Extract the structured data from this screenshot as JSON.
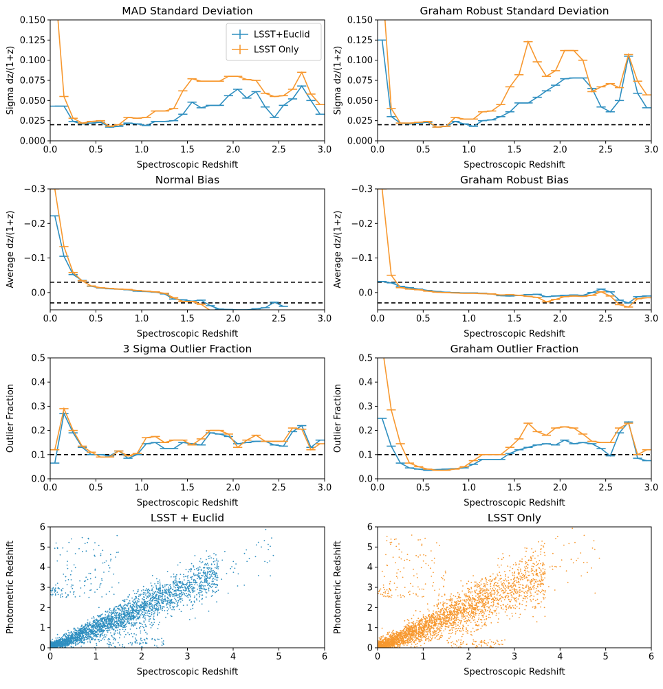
{
  "colors": {
    "euclid": "#2f8fc0",
    "lsst": "#f7982f",
    "reference": "#000000"
  },
  "chart_data": [
    {
      "id": "mad-std",
      "type": "line",
      "title": "MAD Standard Deviation",
      "xlabel": "Spectroscopic Redshift",
      "ylabel": "Sigma dz/(1+z)",
      "xlim": [
        0,
        3
      ],
      "ylim": [
        0,
        0.15
      ],
      "xticks": [
        "0.0",
        "0.5",
        "1.0",
        "1.5",
        "2.0",
        "2.5",
        "3.0"
      ],
      "yticks": [
        "0.000",
        "0.025",
        "0.050",
        "0.075",
        "0.100",
        "0.125",
        "0.150"
      ],
      "reference_lines": [
        0.02
      ],
      "legend": {
        "position": "top-right",
        "entries": [
          "LSST+Euclid",
          "LSST Only"
        ]
      },
      "x": [
        0.05,
        0.15,
        0.25,
        0.35,
        0.45,
        0.55,
        0.65,
        0.75,
        0.85,
        0.95,
        1.05,
        1.15,
        1.25,
        1.35,
        1.45,
        1.55,
        1.65,
        1.75,
        1.85,
        1.95,
        2.05,
        2.15,
        2.25,
        2.35,
        2.45,
        2.55,
        2.65,
        2.75,
        2.85,
        2.95
      ],
      "series": [
        {
          "name": "LSST+Euclid",
          "values": [
            0.043,
            0.043,
            0.024,
            0.021,
            0.022,
            0.023,
            0.017,
            0.018,
            0.022,
            0.021,
            0.019,
            0.024,
            0.024,
            0.025,
            0.033,
            0.048,
            0.041,
            0.044,
            0.044,
            0.056,
            0.064,
            0.053,
            0.061,
            0.042,
            0.029,
            0.044,
            0.052,
            0.068,
            0.05,
            0.033
          ]
        },
        {
          "name": "LSST Only",
          "values": [
            0.2,
            0.055,
            0.028,
            0.022,
            0.024,
            0.025,
            0.018,
            0.02,
            0.029,
            0.028,
            0.029,
            0.037,
            0.037,
            0.04,
            0.062,
            0.077,
            0.074,
            0.074,
            0.074,
            0.08,
            0.08,
            0.076,
            0.075,
            0.059,
            0.055,
            0.056,
            0.064,
            0.085,
            0.058,
            0.045
          ]
        }
      ]
    },
    {
      "id": "graham-std",
      "type": "line",
      "title": "Graham Robust Standard Deviation",
      "xlabel": "Spectroscopic Redshift",
      "ylabel": "Sigma dz/(1+z)",
      "xlim": [
        0,
        3
      ],
      "ylim": [
        0,
        0.15
      ],
      "xticks": [
        "0.0",
        "0.5",
        "1.0",
        "1.5",
        "2.0",
        "2.5",
        "3.0"
      ],
      "yticks": [
        "0.000",
        "0.025",
        "0.050",
        "0.075",
        "0.100",
        "0.125",
        "0.150"
      ],
      "reference_lines": [
        0.02
      ],
      "x": [
        0.05,
        0.15,
        0.25,
        0.35,
        0.45,
        0.55,
        0.65,
        0.75,
        0.85,
        0.95,
        1.05,
        1.15,
        1.25,
        1.35,
        1.45,
        1.55,
        1.65,
        1.75,
        1.85,
        1.95,
        2.05,
        2.15,
        2.25,
        2.35,
        2.45,
        2.55,
        2.65,
        2.75,
        2.85,
        2.95
      ],
      "series": [
        {
          "name": "LSST+Euclid",
          "values": [
            0.125,
            0.03,
            0.022,
            0.021,
            0.022,
            0.023,
            0.017,
            0.018,
            0.024,
            0.021,
            0.018,
            0.025,
            0.026,
            0.03,
            0.036,
            0.047,
            0.047,
            0.054,
            0.062,
            0.069,
            0.077,
            0.078,
            0.078,
            0.065,
            0.042,
            0.036,
            0.05,
            0.105,
            0.059,
            0.041
          ]
        },
        {
          "name": "LSST Only",
          "values": [
            0.2,
            0.04,
            0.022,
            0.022,
            0.023,
            0.024,
            0.017,
            0.018,
            0.029,
            0.027,
            0.027,
            0.036,
            0.037,
            0.045,
            0.067,
            0.082,
            0.123,
            0.098,
            0.08,
            0.087,
            0.112,
            0.112,
            0.1,
            0.061,
            0.067,
            0.071,
            0.066,
            0.107,
            0.074,
            0.057
          ]
        }
      ]
    },
    {
      "id": "normal-bias",
      "type": "line",
      "title": "Normal Bias",
      "xlabel": "Spectroscopic Redshift",
      "ylabel": "Average dz/(1+z)",
      "xlim": [
        0,
        3
      ],
      "ylim": [
        0.05,
        -0.3
      ],
      "xticks": [
        "0.0",
        "0.5",
        "1.0",
        "1.5",
        "2.0",
        "2.5",
        "3.0"
      ],
      "yticks": [
        "−0.3",
        "−0.2",
        "−0.1",
        "0.0"
      ],
      "reference_lines": [
        -0.03,
        0.03
      ],
      "x": [
        0.05,
        0.15,
        0.25,
        0.35,
        0.45,
        0.55,
        0.65,
        0.75,
        0.85,
        0.95,
        1.05,
        1.15,
        1.25,
        1.35,
        1.45,
        1.55,
        1.65,
        1.75,
        1.85,
        1.95,
        2.05,
        2.15,
        2.25,
        2.35,
        2.45,
        2.55
      ],
      "series": [
        {
          "name": "LSST+Euclid",
          "values": [
            -0.222,
            -0.105,
            -0.052,
            -0.035,
            -0.018,
            -0.013,
            -0.011,
            -0.01,
            -0.008,
            -0.004,
            -0.003,
            -0.001,
            0.004,
            0.019,
            0.021,
            0.025,
            0.022,
            0.038,
            0.048,
            0.049,
            0.05,
            0.05,
            0.047,
            0.044,
            0.028,
            0.04
          ]
        },
        {
          "name": "LSST Only",
          "values": [
            -0.3,
            -0.133,
            -0.058,
            -0.034,
            -0.019,
            -0.014,
            -0.012,
            -0.01,
            -0.009,
            -0.006,
            -0.004,
            -0.002,
            0.002,
            0.015,
            0.026,
            0.026,
            0.034,
            0.052,
            0.055,
            0.06,
            0.06,
            0.058,
            0.057,
            0.055,
            0.053,
            0.06
          ]
        }
      ]
    },
    {
      "id": "graham-bias",
      "type": "line",
      "title": "Graham Robust Bias",
      "xlabel": "Spectroscopic Redshift",
      "ylabel": "Average dz/(1+z)",
      "xlim": [
        0,
        3
      ],
      "ylim": [
        0.05,
        -0.3
      ],
      "xticks": [
        "0.0",
        "0.5",
        "1.0",
        "1.5",
        "2.0",
        "2.5",
        "3.0"
      ],
      "yticks": [
        "−0.3",
        "−0.2",
        "−0.1",
        "0.0"
      ],
      "reference_lines": [
        -0.03,
        0.03
      ],
      "x": [
        0.05,
        0.15,
        0.25,
        0.35,
        0.45,
        0.55,
        0.65,
        0.75,
        0.85,
        0.95,
        1.05,
        1.15,
        1.25,
        1.35,
        1.45,
        1.55,
        1.65,
        1.75,
        1.85,
        1.95,
        2.05,
        2.15,
        2.25,
        2.35,
        2.45,
        2.55,
        2.65,
        2.75,
        2.85,
        2.95
      ],
      "series": [
        {
          "name": "LSST+Euclid",
          "values": [
            -0.032,
            -0.028,
            -0.018,
            -0.014,
            -0.01,
            -0.006,
            -0.003,
            -0.001,
            0.0,
            0.001,
            0.001,
            0.002,
            0.004,
            0.009,
            0.01,
            0.008,
            0.006,
            0.005,
            0.012,
            0.01,
            0.008,
            0.007,
            0.008,
            0.0,
            -0.01,
            -0.002,
            0.022,
            0.03,
            0.012,
            0.01
          ]
        },
        {
          "name": "LSST Only",
          "values": [
            -0.3,
            -0.05,
            -0.014,
            -0.01,
            -0.008,
            -0.004,
            -0.001,
            0.0,
            0.001,
            0.002,
            0.002,
            0.003,
            0.004,
            0.007,
            0.006,
            0.008,
            0.011,
            0.014,
            0.027,
            0.02,
            0.012,
            0.01,
            0.011,
            0.008,
            -0.002,
            0.01,
            0.035,
            0.042,
            0.018,
            0.015
          ]
        }
      ]
    },
    {
      "id": "sigma-outlier",
      "type": "line",
      "title": "3 Sigma Outlier Fraction",
      "xlabel": "Spectroscopic Redshift",
      "ylabel": "Outlier Fraction",
      "xlim": [
        0,
        3
      ],
      "ylim": [
        0,
        0.5
      ],
      "xticks": [
        "0.0",
        "0.5",
        "1.0",
        "1.5",
        "2.0",
        "2.5",
        "3.0"
      ],
      "yticks": [
        "0.0",
        "0.1",
        "0.2",
        "0.3",
        "0.4",
        "0.5"
      ],
      "reference_lines": [
        0.1
      ],
      "x": [
        0.05,
        0.15,
        0.25,
        0.35,
        0.45,
        0.55,
        0.65,
        0.75,
        0.85,
        0.95,
        1.05,
        1.15,
        1.25,
        1.35,
        1.45,
        1.55,
        1.65,
        1.75,
        1.85,
        1.95,
        2.05,
        2.15,
        2.25,
        2.35,
        2.45,
        2.55,
        2.65,
        2.75,
        2.85,
        2.95
      ],
      "series": [
        {
          "name": "LSST+Euclid",
          "values": [
            0.065,
            0.27,
            0.19,
            0.13,
            0.1,
            0.1,
            0.095,
            0.115,
            0.085,
            0.1,
            0.145,
            0.15,
            0.125,
            0.125,
            0.15,
            0.145,
            0.14,
            0.19,
            0.185,
            0.175,
            0.145,
            0.15,
            0.155,
            0.155,
            0.14,
            0.135,
            0.195,
            0.22,
            0.13,
            0.16
          ]
        },
        {
          "name": "LSST Only",
          "values": [
            0.12,
            0.29,
            0.2,
            0.135,
            0.11,
            0.09,
            0.09,
            0.115,
            0.095,
            0.105,
            0.17,
            0.175,
            0.15,
            0.16,
            0.16,
            0.14,
            0.165,
            0.2,
            0.2,
            0.185,
            0.13,
            0.16,
            0.18,
            0.155,
            0.155,
            0.155,
            0.21,
            0.205,
            0.12,
            0.145
          ]
        }
      ]
    },
    {
      "id": "graham-outlier",
      "type": "line",
      "title": "Graham Outlier Fraction",
      "xlabel": "Spectroscopic Redshift",
      "ylabel": "Outlier Fraction",
      "xlim": [
        0,
        3
      ],
      "ylim": [
        0,
        0.5
      ],
      "xticks": [
        "0.0",
        "0.5",
        "1.0",
        "1.5",
        "2.0",
        "2.5",
        "3.0"
      ],
      "yticks": [
        "0.0",
        "0.1",
        "0.2",
        "0.3",
        "0.4",
        "0.5"
      ],
      "reference_lines": [
        0.1
      ],
      "x": [
        0.05,
        0.15,
        0.25,
        0.35,
        0.45,
        0.55,
        0.65,
        0.75,
        0.85,
        0.95,
        1.05,
        1.15,
        1.25,
        1.35,
        1.45,
        1.55,
        1.65,
        1.75,
        1.85,
        1.95,
        2.05,
        2.15,
        2.25,
        2.35,
        2.45,
        2.55,
        2.65,
        2.75,
        2.85,
        2.95
      ],
      "series": [
        {
          "name": "LSST+Euclid",
          "values": [
            0.25,
            0.135,
            0.065,
            0.045,
            0.04,
            0.035,
            0.038,
            0.04,
            0.042,
            0.045,
            0.06,
            0.08,
            0.08,
            0.08,
            0.105,
            0.12,
            0.13,
            0.14,
            0.145,
            0.14,
            0.16,
            0.145,
            0.15,
            0.145,
            0.125,
            0.095,
            0.19,
            0.235,
            0.085,
            0.075
          ]
        },
        {
          "name": "LSST Only",
          "values": [
            0.55,
            0.285,
            0.145,
            0.065,
            0.05,
            0.04,
            0.035,
            0.035,
            0.04,
            0.05,
            0.075,
            0.1,
            0.1,
            0.1,
            0.13,
            0.165,
            0.23,
            0.195,
            0.18,
            0.21,
            0.215,
            0.21,
            0.185,
            0.155,
            0.15,
            0.15,
            0.21,
            0.23,
            0.1,
            0.12
          ]
        }
      ]
    },
    {
      "id": "scatter-euclid",
      "type": "scatter",
      "title": "LSST + Euclid",
      "xlabel": "Spectroscopic Redshift",
      "ylabel": "Photometric Redshift",
      "xlim": [
        0,
        6
      ],
      "ylim": [
        0,
        6
      ],
      "xticks": [
        "0",
        "1",
        "2",
        "3",
        "4",
        "5",
        "6"
      ],
      "yticks": [
        "0",
        "1",
        "2",
        "3",
        "4",
        "5",
        "6"
      ],
      "series_name": "LSST+Euclid",
      "main_relation": {
        "x_range": [
          0.0,
          4.9
        ],
        "slope": 1.0,
        "scatter_sigma": 0.12
      },
      "outlier_clusters": [
        {
          "x_range": [
            0.1,
            1.5
          ],
          "y_range": [
            2.5,
            5.6
          ]
        },
        {
          "x_range": [
            1.0,
            2.5
          ],
          "y_range": [
            0.0,
            0.5
          ]
        },
        {
          "x_range": [
            0.0,
            0.3
          ],
          "y_range": [
            2.5,
            3.0
          ]
        }
      ]
    },
    {
      "id": "scatter-lsst",
      "type": "scatter",
      "title": "LSST Only",
      "xlabel": "Spectroscopic Redshift",
      "ylabel": "Photometric Redshift",
      "xlim": [
        0,
        6
      ],
      "ylim": [
        0,
        6
      ],
      "xticks": [
        "0",
        "1",
        "2",
        "3",
        "4",
        "5",
        "6"
      ],
      "yticks": [
        "0",
        "1",
        "2",
        "3",
        "4",
        "5",
        "6"
      ],
      "series_name": "LSST Only",
      "main_relation": {
        "x_range": [
          0.0,
          4.9
        ],
        "slope": 1.0,
        "scatter_sigma": 0.16
      },
      "outlier_clusters": [
        {
          "x_range": [
            0.1,
            1.5
          ],
          "y_range": [
            2.5,
            5.6
          ]
        },
        {
          "x_range": [
            1.5,
            2.8
          ],
          "y_range": [
            0.0,
            0.4
          ]
        },
        {
          "x_range": [
            0.0,
            0.3
          ],
          "y_range": [
            2.5,
            3.0
          ]
        }
      ]
    }
  ]
}
